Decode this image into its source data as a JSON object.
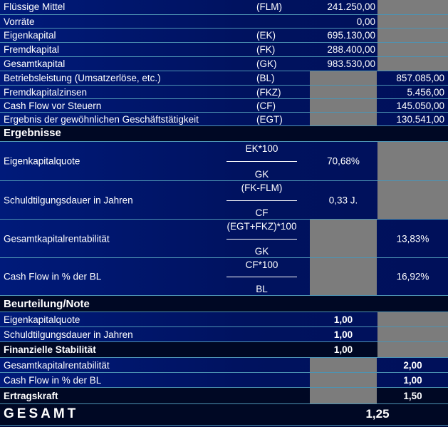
{
  "input_rows": [
    {
      "label": "Flüssige Mittel",
      "abbr": "(FLM)",
      "val3": "241.250,00",
      "val4": ""
    },
    {
      "label": "Vorräte",
      "abbr": "",
      "val3": "0,00",
      "val4": ""
    },
    {
      "label": "Eigenkapital",
      "abbr": "(EK)",
      "val3": "695.130,00",
      "val4": ""
    },
    {
      "label": "Fremdkapital",
      "abbr": "(FK)",
      "val3": "288.400,00",
      "val4": ""
    },
    {
      "label": "Gesamtkapital",
      "abbr": "(GK)",
      "val3": "983.530,00",
      "val4": ""
    },
    {
      "label": "Betriebsleistung (Umsatzerlöse, etc.)",
      "abbr": "(BL)",
      "val3": "",
      "val4": "857.085,00"
    },
    {
      "label": "Fremdkapitalzinsen",
      "abbr": "(FKZ)",
      "val3": "",
      "val4": "5.456,00"
    },
    {
      "label": "Cash Flow vor Steuern",
      "abbr": "(CF)",
      "val3": "",
      "val4": "145.050,00"
    },
    {
      "label": "Ergebnis der gewöhnlichen Geschäftstätigkeit",
      "abbr": "(EGT)",
      "val3": "",
      "val4": "130.541,00"
    }
  ],
  "results": {
    "title": "Ergebnisse",
    "rows": [
      {
        "label": "Eigenkapitalquote",
        "num": "EK*100",
        "den": "GK",
        "val3": "70,68%",
        "val4": ""
      },
      {
        "label": "Schuldtilgungsdauer in Jahren",
        "num": "(FK-FLM)",
        "den": "CF",
        "val3": "0,33 J.",
        "val4": ""
      },
      {
        "label": "Gesamtkapitalrentabilität",
        "num": "(EGT+FKZ)*100",
        "den": "GK",
        "val3": "",
        "val4": "13,83%"
      },
      {
        "label": "Cash Flow in % der BL",
        "num": "CF*100",
        "den": "BL",
        "val3": "",
        "val4": "16,92%"
      }
    ]
  },
  "rating": {
    "title": "Beurteilung/Note",
    "rows": [
      {
        "label": "Eigenkapitalquote",
        "val3": "1,00",
        "val4": "",
        "bold": false
      },
      {
        "label": "Schuldtilgungsdauer in Jahren",
        "val3": "1,00",
        "val4": "",
        "bold": false
      },
      {
        "label": "Finanzielle Stabilität",
        "val3": "1,00",
        "val4": "",
        "bold": true
      },
      {
        "label": "Gesamtkapitalrentabilität",
        "val3": "",
        "val4": "2,00",
        "bold": false
      },
      {
        "label": "Cash Flow in % der BL",
        "val3": "",
        "val4": "1,00",
        "bold": false
      },
      {
        "label": "Ertragskraft",
        "val3": "",
        "val4": "1,50",
        "bold": true
      }
    ]
  },
  "total": {
    "label": "GESAMT",
    "value": "1,25"
  },
  "colors": {
    "background": "#000a3c",
    "row_blue": "#001a7a",
    "gray_cell": "#7c7c7c",
    "border": "#4d93b3"
  }
}
